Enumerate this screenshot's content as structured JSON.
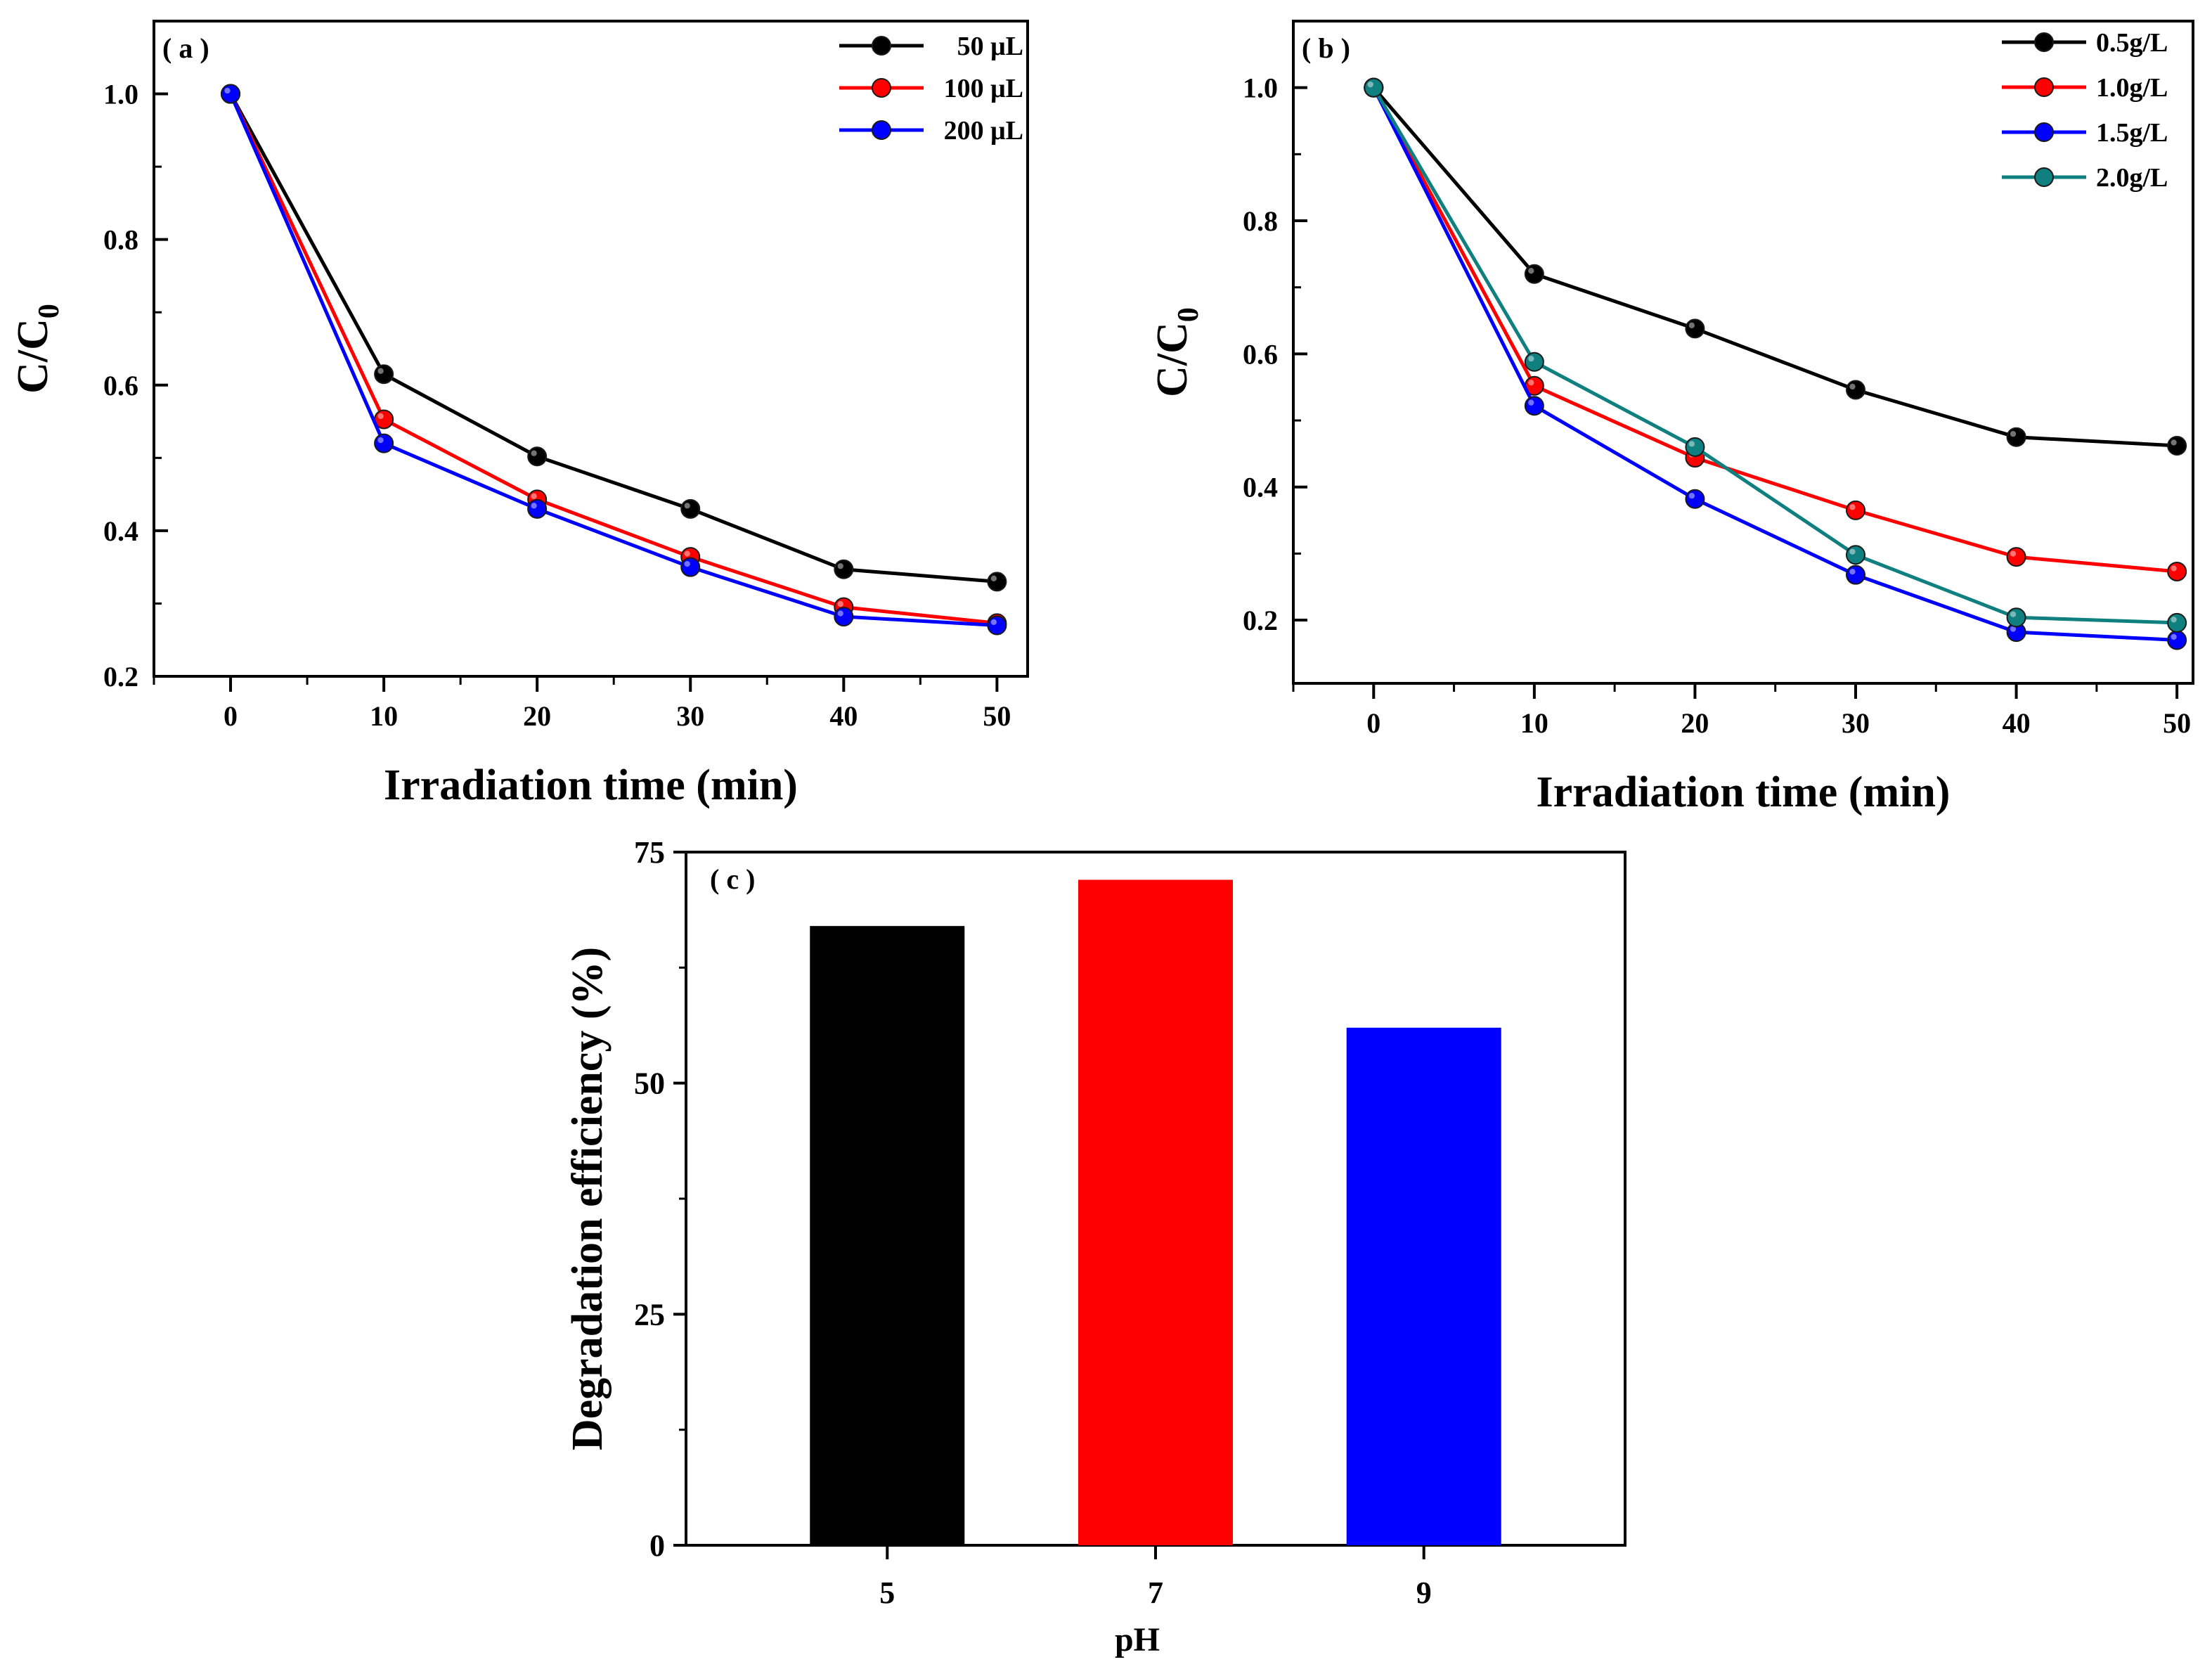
{
  "chart_data": [
    {
      "type": "line",
      "panel": "a",
      "panel_label": "( a )",
      "xlabel": "Irradiation time (min)",
      "ylabel": "C/C",
      "ylabel_sub": "0",
      "xlim": [
        -5,
        52
      ],
      "ylim": [
        0.2,
        1.1
      ],
      "x_ticks": [
        0,
        10,
        20,
        30,
        40,
        50
      ],
      "y_ticks": [
        0.2,
        0.4,
        0.6,
        0.8,
        1.0
      ],
      "y_tick_labels": [
        "0.2",
        "0.4",
        "0.6",
        "0.8",
        "1.0"
      ],
      "legend_position": "top-right",
      "x": [
        0,
        10,
        20,
        30,
        40,
        50
      ],
      "series": [
        {
          "name": "50 μL",
          "color": "#000000",
          "values": [
            1.0,
            0.615,
            0.502,
            0.43,
            0.347,
            0.33
          ]
        },
        {
          "name": "100 μL",
          "color": "#ff0000",
          "values": [
            1.0,
            0.553,
            0.443,
            0.364,
            0.295,
            0.273
          ]
        },
        {
          "name": "200 μL",
          "color": "#0000ff",
          "values": [
            1.0,
            0.52,
            0.43,
            0.35,
            0.282,
            0.27
          ]
        }
      ]
    },
    {
      "type": "line",
      "panel": "b",
      "panel_label": "( b )",
      "xlabel": "Irradiation time (min)",
      "ylabel": "C/C",
      "ylabel_sub": "0",
      "xlim": [
        -5,
        51
      ],
      "ylim": [
        0.105,
        1.1
      ],
      "x_ticks": [
        0,
        10,
        20,
        30,
        40,
        50
      ],
      "y_ticks": [
        0.2,
        0.4,
        0.6,
        0.8,
        1.0
      ],
      "y_tick_labels": [
        "0.2",
        "0.4",
        "0.6",
        "0.8",
        "1.0"
      ],
      "legend_position": "top-right",
      "x": [
        0,
        10,
        20,
        30,
        40,
        50
      ],
      "series": [
        {
          "name": "0.5g/L",
          "color": "#000000",
          "values": [
            1.0,
            0.72,
            0.638,
            0.546,
            0.475,
            0.462
          ]
        },
        {
          "name": "1.0g/L",
          "color": "#ff0000",
          "values": [
            1.0,
            0.552,
            0.444,
            0.365,
            0.295,
            0.273
          ]
        },
        {
          "name": "1.5g/L",
          "color": "#0000ff",
          "values": [
            1.0,
            0.522,
            0.382,
            0.268,
            0.182,
            0.17
          ]
        },
        {
          "name": "2.0g/L",
          "color": "#0f7f7f",
          "values": [
            1.0,
            0.588,
            0.46,
            0.298,
            0.204,
            0.196
          ]
        }
      ]
    },
    {
      "type": "bar",
      "panel": "c",
      "panel_label": "( c )",
      "xlabel": "pH",
      "ylabel": "Degradation efficiency (%)",
      "ylim": [
        0,
        75
      ],
      "y_ticks": [
        0,
        25,
        50,
        75
      ],
      "categories": [
        "5",
        "7",
        "9"
      ],
      "values": [
        67,
        72,
        56
      ],
      "colors": [
        "#000000",
        "#ff0000",
        "#0000ff"
      ]
    }
  ]
}
